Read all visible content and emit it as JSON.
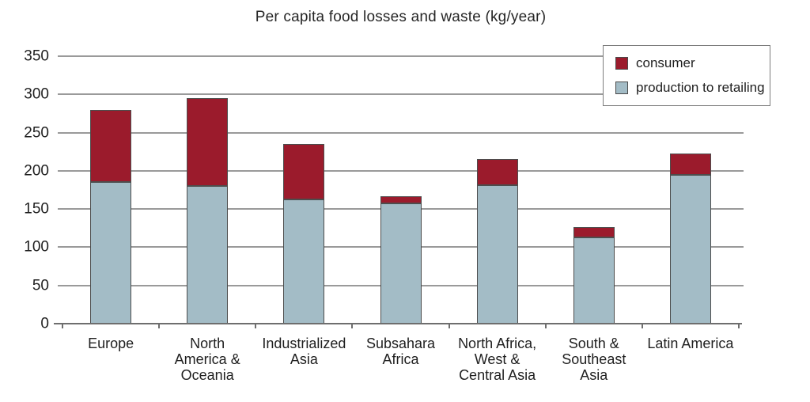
{
  "chart_data": {
    "type": "bar",
    "stacked": true,
    "title": "Per capita food losses and waste (kg/year)",
    "categories": [
      "Europe",
      "North America & Oceania",
      "Industrialized Asia",
      "Subsahara Africa",
      "North Africa, West & Central Asia",
      "South & Southeast Asia",
      "Latin America"
    ],
    "category_lines": [
      [
        "Europe"
      ],
      [
        "North",
        "America &",
        "Oceania"
      ],
      [
        "Industrialized",
        "Asia"
      ],
      [
        "Subsahara",
        "Africa"
      ],
      [
        "North Africa,",
        "West &",
        "Central Asia"
      ],
      [
        "South &",
        "Southeast",
        "Asia"
      ],
      [
        "Latin America"
      ]
    ],
    "series": [
      {
        "name": "production to retailing",
        "color": "#A3BCC6",
        "values": [
          185,
          180,
          163,
          157,
          181,
          113,
          195
        ]
      },
      {
        "name": "consumer",
        "color": "#9B1B2C",
        "values": [
          95,
          115,
          72,
          10,
          34,
          13,
          28
        ]
      }
    ],
    "totals": [
      280,
      295,
      235,
      167,
      215,
      126,
      223
    ],
    "xlabel": "",
    "ylabel": "",
    "ylim": [
      0,
      350
    ],
    "yticks": [
      0,
      50,
      100,
      150,
      200,
      250,
      300,
      350
    ],
    "grid": true,
    "legend": {
      "position": "top-right",
      "items": [
        {
          "label": "consumer",
          "color": "#9B1B2C"
        },
        {
          "label": "production to retailing",
          "color": "#A3BCC6"
        }
      ]
    }
  },
  "colors": {
    "background": "#FFFFFF",
    "gridline": "#9A9A9A",
    "axis": "#6E6E6E",
    "bar_border": "#4D4D4D",
    "legend_border": "#7D7D7D",
    "text": "#1F1F1F"
  }
}
